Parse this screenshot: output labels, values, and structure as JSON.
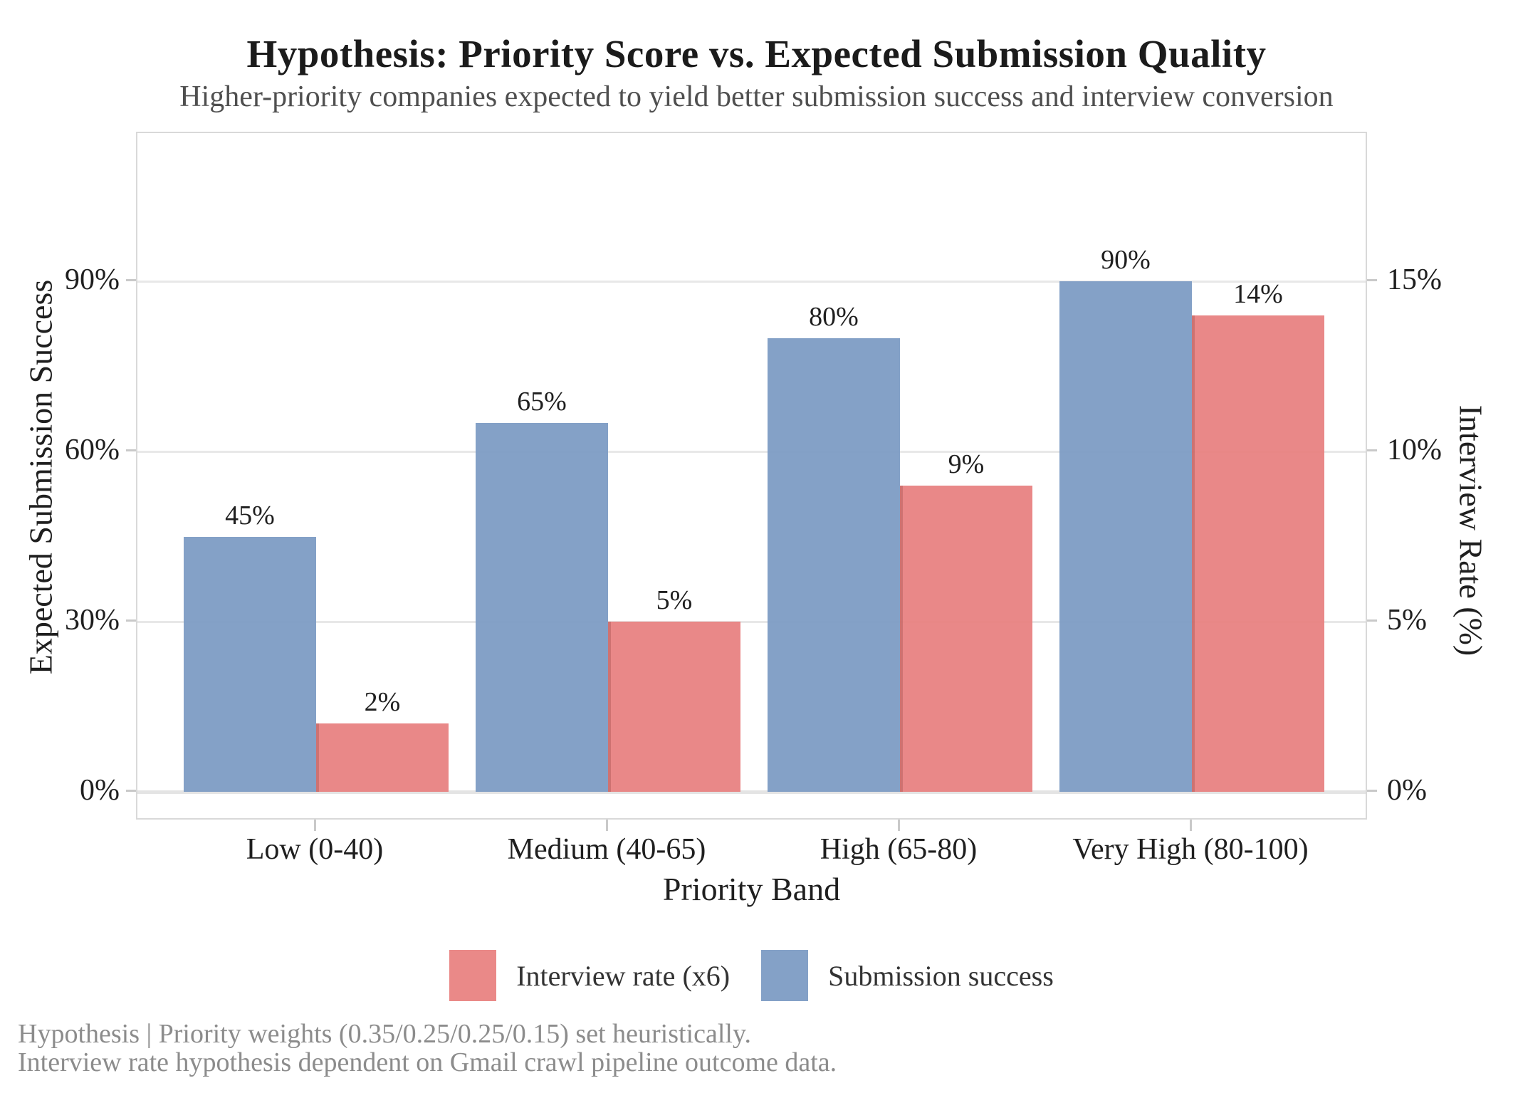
{
  "chart_data": {
    "type": "bar",
    "title": "Hypothesis: Priority Score vs. Expected Submission Quality",
    "subtitle": "Higher-priority companies expected to yield better submission success and interview conversion",
    "xlabel": "Priority Band",
    "ylabel_left": "Expected Submission Success",
    "ylabel_right": "Interview Rate (%)",
    "categories": [
      "Low (0-40)",
      "Medium (40-65)",
      "High (65-80)",
      "Very High (80-100)"
    ],
    "series": [
      {
        "name": "Submission success",
        "axis": "left",
        "color": "#7b9ac3",
        "values": [
          45,
          65,
          80,
          90
        ],
        "value_labels": [
          "45%",
          "65%",
          "80%",
          "90%"
        ],
        "left_axis_equivalent_multiplier": 1
      },
      {
        "name": "Interview rate (x6)",
        "axis": "right",
        "color": "#e8807f",
        "values": [
          2,
          5,
          9,
          14
        ],
        "value_labels": [
          "2%",
          "5%",
          "9%",
          "14%"
        ],
        "left_axis_equivalent_multiplier": 6
      }
    ],
    "left_axis": {
      "tick_values": [
        0,
        30,
        60,
        90
      ],
      "tick_labels": [
        "0%",
        "30%",
        "60%",
        "90%"
      ]
    },
    "right_axis": {
      "tick_values": [
        0,
        5,
        10,
        15
      ],
      "tick_labels": [
        "0%",
        "5%",
        "10%",
        "15%"
      ]
    },
    "legend": [
      {
        "label": "Interview rate (x6)",
        "color": "#e8807f"
      },
      {
        "label": "Submission success",
        "color": "#7b9ac3"
      }
    ],
    "grid": "horizontal",
    "legend_position": "bottom-center"
  },
  "footer": {
    "line1": "Hypothesis | Priority weights (0.35/0.25/0.25/0.15) set heuristically.",
    "line2": "Interview rate hypothesis dependent on Gmail crawl pipeline outcome data."
  }
}
